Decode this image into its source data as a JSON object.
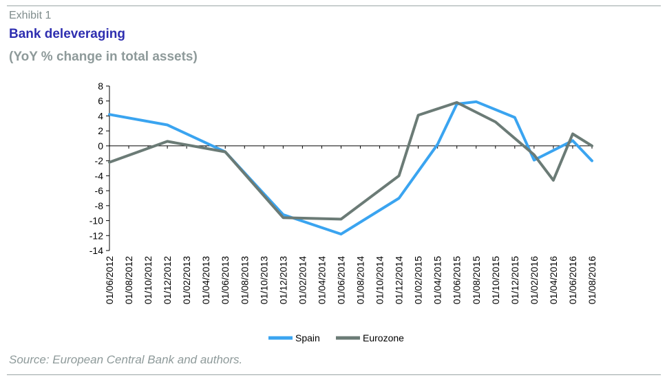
{
  "header": {
    "exhibit": "Exhibit 1",
    "title": "Bank deleveraging",
    "subtitle": "(YoY % change in total assets)"
  },
  "footer": {
    "source": "Source: European Central Bank and authors."
  },
  "colors": {
    "spain": "#3aa4f0",
    "eurozone": "#6b7b76",
    "title": "#2e2eb0",
    "muted": "#8e9a9a"
  },
  "chart_data": {
    "type": "line",
    "title": "Bank deleveraging",
    "subtitle": "(YoY % change in total assets)",
    "xlabel": "",
    "ylabel": "",
    "ylim": [
      -14,
      8
    ],
    "yticks": [
      8,
      6,
      4,
      2,
      0,
      -2,
      -4,
      -6,
      -8,
      -10,
      -12,
      -14
    ],
    "categories": [
      "01/06/2012",
      "01/08/2012",
      "01/10/2012",
      "01/12/2012",
      "01/02/2013",
      "01/04/2013",
      "01/06/2013",
      "01/08/2013",
      "01/10/2013",
      "01/12/2013",
      "01/02/2014",
      "01/04/2014",
      "01/06/2014",
      "01/08/2014",
      "01/10/2014",
      "01/12/2014",
      "01/02/2015",
      "01/04/2015",
      "01/06/2015",
      "01/08/2015",
      "01/10/2015",
      "01/12/2015",
      "01/02/2016",
      "01/04/2016",
      "01/06/2016",
      "01/08/2016"
    ],
    "series": [
      {
        "name": "Spain",
        "points": [
          [
            0,
            4.2
          ],
          [
            3,
            2.8
          ],
          [
            6,
            -0.8
          ],
          [
            9,
            -9.2
          ],
          [
            12,
            -11.8
          ],
          [
            15,
            -7.0
          ],
          [
            17,
            0.2
          ],
          [
            18,
            5.6
          ],
          [
            19,
            5.9
          ],
          [
            21,
            3.8
          ],
          [
            22,
            -1.9
          ],
          [
            24,
            0.7
          ],
          [
            25,
            -2.0
          ]
        ]
      },
      {
        "name": "Eurozone",
        "points": [
          [
            0,
            -2.2
          ],
          [
            3,
            0.6
          ],
          [
            6,
            -0.8
          ],
          [
            9,
            -9.6
          ],
          [
            12,
            -9.8
          ],
          [
            15,
            -4.0
          ],
          [
            16,
            4.1
          ],
          [
            18,
            5.8
          ],
          [
            20,
            3.2
          ],
          [
            22,
            -1.2
          ],
          [
            23,
            -4.6
          ],
          [
            24,
            1.6
          ],
          [
            25,
            0.0
          ]
        ]
      }
    ],
    "legend": {
      "position": "bottom-center",
      "entries": [
        "Spain",
        "Eurozone"
      ]
    },
    "grid": false
  }
}
